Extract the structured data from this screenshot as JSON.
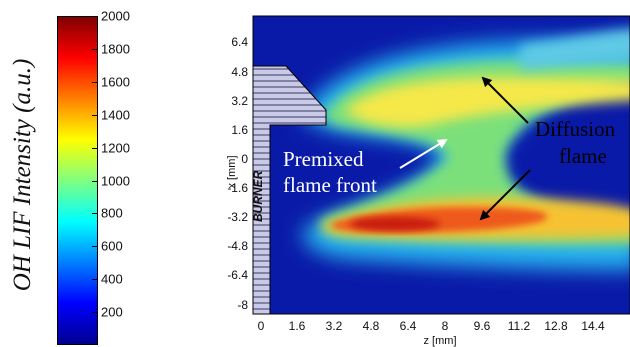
{
  "colorbar": {
    "title": "OH LIF Intensity (a.u.)",
    "ticks": [
      200,
      400,
      600,
      800,
      1000,
      1200,
      1400,
      1600,
      1800,
      2000
    ],
    "tick_labels": [
      "200",
      "400",
      "600",
      "800",
      "1000",
      "1200",
      "1400",
      "1600",
      "1800",
      "2000"
    ],
    "range": [
      0,
      2000
    ],
    "colormap": [
      "#00008f",
      "#0000ff",
      "#0080ff",
      "#00ffff",
      "#80ff80",
      "#ffff00",
      "#ff8000",
      "#ff0000",
      "#800000"
    ]
  },
  "plot": {
    "xlabel": "z [mm]",
    "ylabel": "x [mm]",
    "xticks": [
      "0",
      "1.6",
      "3.2",
      "4.8",
      "6.4",
      "8",
      "9.6",
      "11.2",
      "12.8",
      "14.4"
    ],
    "yticks": [
      "6.4",
      "4.8",
      "3.2",
      "1.6",
      "0",
      "-1.6",
      "-3.2",
      "-4.8",
      "-6.4",
      "-8"
    ],
    "burner_label": "BURNER",
    "annotations": {
      "premixed_line1": "Premixed",
      "premixed_line2": "flame front",
      "diffusion_line1": "Diffusion",
      "diffusion_line2": "flame"
    },
    "colors": {
      "background": "#0a1aa8",
      "burner_fill": "#c9c9e8",
      "arrow_white": "#ffffff",
      "arrow_black": "#000000"
    }
  }
}
